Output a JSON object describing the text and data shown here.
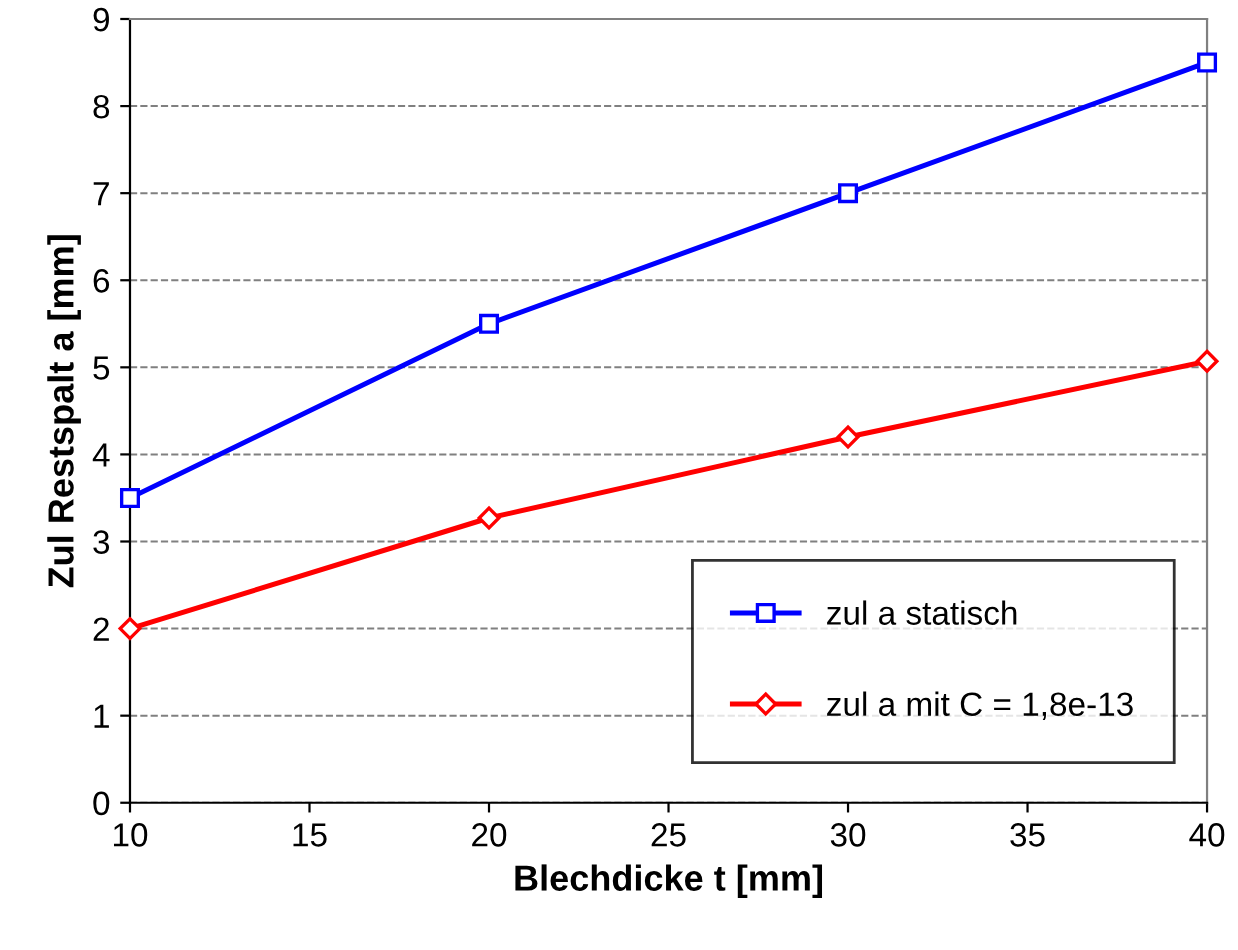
{
  "chart_data": {
    "type": "line",
    "xlabel": "Blechdicke t [mm]",
    "ylabel": "Zul Restspalt a [mm]",
    "x": [
      10,
      20,
      30,
      40
    ],
    "series": [
      {
        "name": "zul a statisch",
        "color": "#0000ff",
        "marker": "square",
        "values": [
          3.5,
          5.5,
          7.0,
          8.5
        ]
      },
      {
        "name": "zul a mit C = 1,8e-13",
        "color": "#ff0000",
        "marker": "diamond",
        "values": [
          2.0,
          3.27,
          4.2,
          5.07
        ]
      }
    ],
    "xlim": [
      10,
      40
    ],
    "xticks": [
      10,
      15,
      20,
      25,
      30,
      35,
      40
    ],
    "ylim": [
      0,
      9
    ],
    "yticks": [
      0,
      1,
      2,
      3,
      4,
      5,
      6,
      7,
      8,
      9
    ],
    "grid": "y",
    "legend": "bottom right",
    "line_style": "solid"
  }
}
